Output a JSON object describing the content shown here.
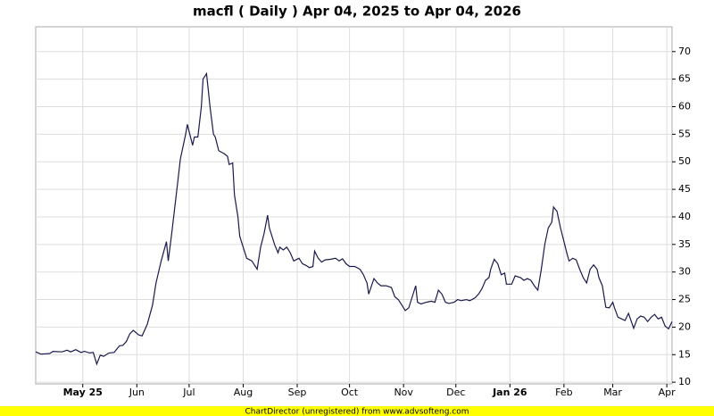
{
  "chart_data": {
    "type": "line",
    "title": "macfl ( Daily ) Apr 04, 2025 to Apr 04, 2026",
    "footer": "ChartDirector (unregistered) from www.advsofteng.com",
    "x": [
      0,
      3,
      8,
      10,
      15,
      18,
      20,
      23,
      26,
      28,
      31,
      33,
      35,
      37,
      39,
      42,
      45,
      48,
      50,
      52,
      54,
      56,
      59,
      61,
      64,
      67,
      69,
      72,
      75,
      76,
      78,
      81,
      83,
      86,
      87,
      88,
      90,
      91,
      93,
      95,
      96,
      98,
      99,
      100,
      102,
      103,
      105,
      108,
      110,
      111,
      113,
      114,
      116,
      117,
      119,
      121,
      124,
      127,
      129,
      131,
      133,
      134,
      136,
      137,
      139,
      140,
      142,
      144,
      146,
      148,
      151,
      153,
      155,
      157,
      159,
      160,
      162,
      164,
      166,
      169,
      172,
      174,
      176,
      178,
      180,
      183,
      186,
      188,
      190,
      191,
      194,
      196,
      198,
      201,
      204,
      206,
      208,
      210,
      212,
      214,
      216,
      218,
      219,
      221,
      224,
      227,
      229,
      231,
      233,
      235,
      237,
      240,
      242,
      244,
      247,
      249,
      252,
      254,
      256,
      258,
      260,
      261,
      263,
      265,
      267,
      269,
      270,
      273,
      275,
      278,
      280,
      282,
      284,
      286,
      288,
      290,
      292,
      294,
      296,
      297,
      299,
      301,
      303,
      305,
      306,
      308,
      310,
      312,
      314,
      316,
      318,
      320,
      322,
      323,
      325,
      327,
      329,
      331,
      332,
      334,
      336,
      338,
      340,
      343,
      345,
      347,
      349,
      351,
      353,
      355,
      357,
      359,
      361,
      363,
      365
    ],
    "series": [
      {
        "name": "macfl",
        "color": "#1a1a4e",
        "values": [
          15.5,
          15.1,
          15.2,
          15.6,
          15.5,
          15.8,
          15.5,
          15.9,
          15.4,
          15.6,
          15.3,
          15.4,
          13.3,
          14.9,
          14.7,
          15.3,
          15.4,
          16.6,
          16.7,
          17.4,
          18.8,
          19.4,
          18.6,
          18.4,
          20.5,
          24,
          28,
          32,
          35.5,
          32,
          37,
          45,
          50.5,
          55,
          56.8,
          55.5,
          53,
          54.5,
          54.5,
          60,
          65,
          66,
          63,
          60,
          55,
          54.5,
          52,
          51.5,
          51,
          49.5,
          49.8,
          44,
          40,
          36.5,
          34.5,
          32.5,
          32,
          30.5,
          34.5,
          37,
          40.3,
          38,
          36,
          35,
          33.5,
          34.5,
          34,
          34.5,
          33.5,
          32,
          32.5,
          31.5,
          31.2,
          30.8,
          31,
          33.8,
          32.5,
          31.8,
          32.2,
          32.3,
          32.5,
          32,
          32.4,
          31.5,
          31,
          31,
          30.5,
          29.5,
          28,
          26,
          28.8,
          28,
          27.5,
          27.5,
          27.2,
          25.5,
          25,
          24,
          23,
          23.5,
          25.5,
          27.5,
          24.5,
          24.2,
          24.5,
          24.7,
          24.5,
          26.7,
          26,
          24.5,
          24.3,
          24.5,
          25,
          24.8,
          25,
          24.8,
          25.3,
          26,
          27,
          28.5,
          29,
          30.5,
          32.3,
          31.5,
          29.5,
          29.8,
          27.8,
          27.8,
          29.3,
          29,
          28.5,
          28.8,
          28.5,
          27.5,
          26.7,
          30.5,
          35,
          38,
          39,
          41.8,
          41,
          38,
          35.5,
          33,
          32,
          32.5,
          32.2,
          30.5,
          29,
          28,
          30.5,
          31.3,
          30.5,
          29,
          27.5,
          23.6,
          23.5,
          24.5,
          23.5,
          21.8,
          21.5,
          21.2,
          22.5,
          19.8,
          21.5,
          22,
          21.8,
          21,
          21.8,
          22.3,
          21.5,
          21.8,
          20.2,
          19.7,
          21
        ]
      }
    ],
    "xlim": [
      0,
      365
    ],
    "xticks": [
      {
        "value": 27,
        "label": "May 25"
      },
      {
        "value": 58,
        "label": "Jun"
      },
      {
        "value": 88,
        "label": "Jul"
      },
      {
        "value": 119,
        "label": "Aug"
      },
      {
        "value": 150,
        "label": "Sep"
      },
      {
        "value": 180,
        "label": "Oct"
      },
      {
        "value": 211,
        "label": "Nov"
      },
      {
        "value": 241,
        "label": "Dec"
      },
      {
        "value": 272,
        "label": "Jan 26"
      },
      {
        "value": 303,
        "label": "Feb"
      },
      {
        "value": 331,
        "label": "Mar"
      },
      {
        "value": 362,
        "label": "Apr"
      }
    ],
    "ylim": [
      9.7,
      74.5
    ],
    "yticks": [
      10,
      15,
      20,
      25,
      30,
      35,
      40,
      45,
      50,
      55,
      60,
      65,
      70
    ],
    "grid": true
  }
}
